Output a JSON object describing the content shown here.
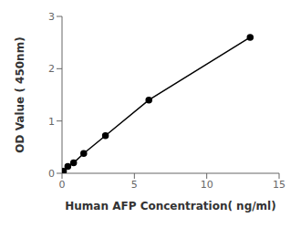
{
  "chart_data": {
    "type": "line",
    "x": [
      0.1,
      0.4,
      0.8,
      1.5,
      3.0,
      6.0,
      13.0
    ],
    "values": [
      0.04,
      0.13,
      0.2,
      0.38,
      0.72,
      1.4,
      2.6
    ],
    "xlabel": "Human AFP Concentration( ng/ml)",
    "ylabel": "OD Value ( 450nm)",
    "xlim": [
      0,
      15
    ],
    "ylim": [
      0,
      3
    ],
    "xticks": [
      0,
      5,
      10,
      15
    ],
    "yticks": [
      0,
      1,
      2,
      3
    ],
    "color": "#000000",
    "marker": "circle",
    "grid": false
  }
}
